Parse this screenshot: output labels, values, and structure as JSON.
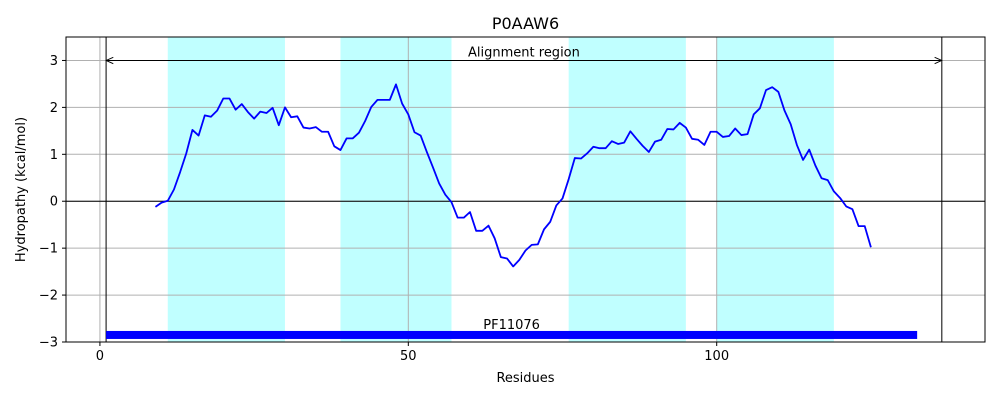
{
  "chart_data": {
    "type": "line",
    "title": "P0AAW6",
    "xlabel": "Residues",
    "ylabel": "Hydropathy (kcal/mol)",
    "xlim": [
      -5.5,
      143.5
    ],
    "ylim": [
      -3,
      3.5
    ],
    "xticks": [
      0,
      50,
      100
    ],
    "yticks": [
      -3,
      -2,
      -1,
      0,
      1,
      2,
      3
    ],
    "ytick_labels": [
      "−3",
      "−2",
      "−1",
      "0",
      "1",
      "2",
      "3"
    ],
    "grid": true,
    "series": [
      {
        "color": "#0000ff",
        "x": [
          9,
          10,
          11,
          12,
          13,
          14,
          15,
          16,
          17,
          18,
          19,
          20,
          21,
          22,
          23,
          24,
          25,
          26,
          27,
          28,
          29,
          30,
          31,
          32,
          33,
          34,
          35,
          36,
          37,
          38,
          39,
          40,
          41,
          42,
          43,
          44,
          45,
          46,
          47,
          48,
          49,
          50,
          51,
          52,
          53,
          54,
          55,
          56,
          57,
          58,
          59,
          60,
          61,
          62,
          63,
          64,
          65,
          66,
          67,
          68,
          69,
          70,
          71,
          72,
          73,
          74,
          75,
          76,
          77,
          78,
          79,
          80,
          81,
          82,
          83,
          84,
          85,
          86,
          87,
          88,
          89,
          90,
          91,
          92,
          93,
          94,
          95,
          96,
          97,
          98,
          99,
          100,
          101,
          102,
          103,
          104,
          105,
          106,
          107,
          108,
          109,
          110,
          111,
          112,
          113,
          114,
          115,
          116,
          117,
          118,
          119,
          120,
          121,
          122,
          123,
          124,
          125
        ],
        "y": [
          -0.12,
          -0.03,
          0.01,
          0.25,
          0.62,
          1.02,
          1.52,
          1.4,
          1.83,
          1.8,
          1.93,
          2.19,
          2.19,
          1.95,
          2.07,
          1.9,
          1.76,
          1.91,
          1.88,
          1.99,
          1.62,
          2.0,
          1.79,
          1.81,
          1.57,
          1.55,
          1.58,
          1.48,
          1.48,
          1.17,
          1.09,
          1.34,
          1.34,
          1.46,
          1.71,
          2.01,
          2.16,
          2.16,
          2.16,
          2.49,
          2.08,
          1.85,
          1.47,
          1.4,
          1.05,
          0.72,
          0.38,
          0.14,
          -0.02,
          -0.35,
          -0.35,
          -0.23,
          -0.63,
          -0.63,
          -0.52,
          -0.79,
          -1.19,
          -1.22,
          -1.39,
          -1.25,
          -1.05,
          -0.93,
          -0.92,
          -0.6,
          -0.44,
          -0.09,
          0.06,
          0.47,
          0.92,
          0.91,
          1.02,
          1.16,
          1.13,
          1.13,
          1.28,
          1.22,
          1.25,
          1.49,
          1.33,
          1.18,
          1.05,
          1.27,
          1.31,
          1.54,
          1.53,
          1.67,
          1.57,
          1.33,
          1.31,
          1.2,
          1.48,
          1.48,
          1.37,
          1.39,
          1.55,
          1.41,
          1.43,
          1.85,
          1.98,
          2.37,
          2.43,
          2.33,
          1.93,
          1.64,
          1.2,
          0.88,
          1.1,
          0.76,
          0.49,
          0.45,
          0.21,
          0.07,
          -0.11,
          -0.17,
          -0.53,
          -0.53,
          -0.98
        ]
      }
    ],
    "shaded_regions": [
      [
        11,
        30
      ],
      [
        39,
        57
      ],
      [
        76,
        95
      ],
      [
        100,
        119
      ]
    ],
    "shade_color": "#c0ffff",
    "vlines": [
      1,
      136.5
    ],
    "hline": 0,
    "alignment": {
      "label": "Alignment region",
      "x_start": 1,
      "x_end": 136.5,
      "y": 3.0
    },
    "domain_bar": {
      "label": "PF11076",
      "x_start": 1,
      "x_end": 132.5,
      "y": -2.85
    }
  }
}
